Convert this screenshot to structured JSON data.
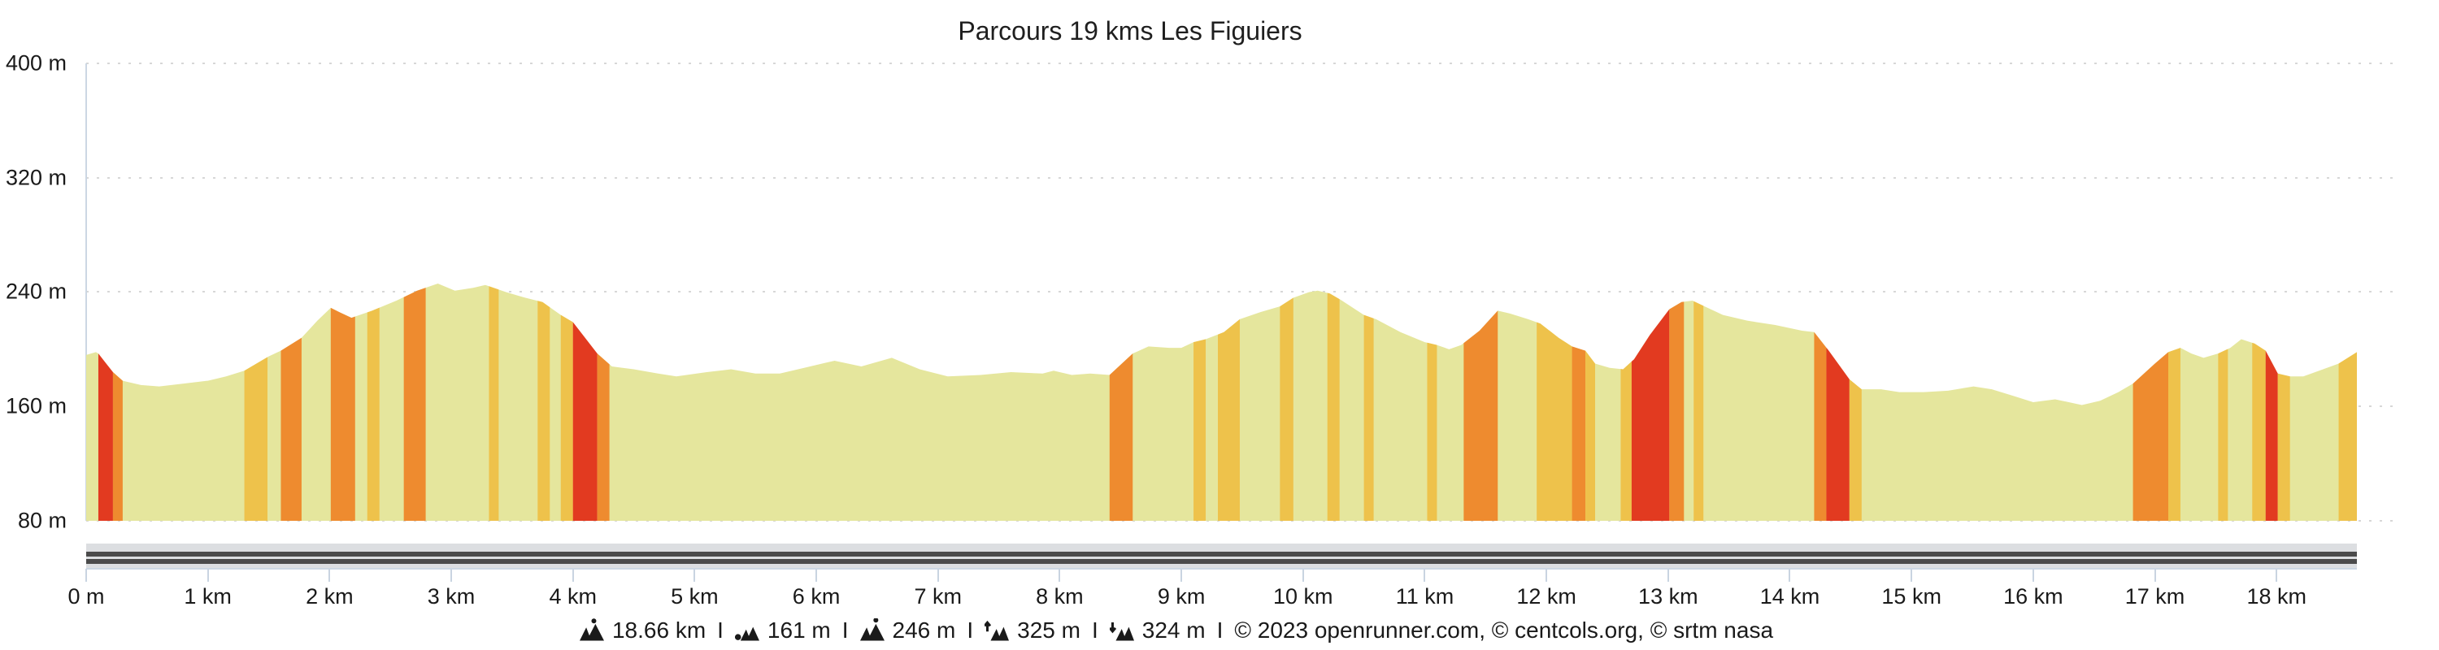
{
  "title": "Parcours 19 kms Les Figuiers",
  "y_axis": {
    "labels": [
      "400 m",
      "320 m",
      "240 m",
      "160 m",
      "80 m"
    ],
    "values": [
      400,
      320,
      240,
      160,
      80
    ]
  },
  "x_axis": {
    "labels": [
      "0 m",
      "1 km",
      "2 km",
      "3 km",
      "4 km",
      "5 km",
      "6 km",
      "7 km",
      "8 km",
      "9 km",
      "10 km",
      "11 km",
      "12 km",
      "13 km",
      "14 km",
      "15 km",
      "16 km",
      "17 km",
      "18 km"
    ]
  },
  "footer": {
    "separator": "I",
    "stats": [
      {
        "icon": "distance-icon",
        "value": "18.66 km"
      },
      {
        "icon": "min-altitude-icon",
        "value": "161 m"
      },
      {
        "icon": "max-altitude-icon",
        "value": "246 m"
      },
      {
        "icon": "ascent-icon",
        "value": "325 m"
      },
      {
        "icon": "descent-icon",
        "value": "324 m"
      }
    ],
    "copyright": "© 2023 openrunner.com, © centcols.org, © srtm nasa"
  },
  "palette": {
    "base_fill": "#e5e69d",
    "gold": "#eec24b",
    "orange": "#ee8b2f",
    "red": "#e23a20",
    "grid": "#d7d7d7",
    "axis": "#ccd7e3",
    "tick": "#c9d4e1",
    "slider_track": "#dcdee1",
    "slider_stripe": "#4b4b4b",
    "text": "#1a1a1a"
  },
  "chart_data": {
    "type": "area",
    "title": "Parcours 19 kms Les Figuiers",
    "xlabel": "distance",
    "ylabel": "elevation",
    "xlim_km": [
      0,
      19
    ],
    "ylim_m": [
      80,
      400
    ],
    "route_length_km": 18.66,
    "grid": "dotted-horizontal",
    "x_km": [
      0.0,
      0.08,
      0.1,
      0.22,
      0.3,
      0.45,
      0.6,
      0.8,
      1.0,
      1.15,
      1.3,
      1.5,
      1.6,
      1.77,
      1.9,
      2.01,
      2.08,
      2.18,
      2.35,
      2.55,
      2.72,
      2.89,
      3.03,
      3.18,
      3.28,
      3.45,
      3.61,
      3.75,
      3.9,
      4.0,
      4.2,
      4.32,
      4.5,
      4.7,
      4.85,
      5.1,
      5.3,
      5.5,
      5.7,
      5.9,
      6.15,
      6.37,
      6.62,
      6.85,
      7.08,
      7.35,
      7.6,
      7.86,
      7.95,
      8.1,
      8.25,
      8.41,
      8.6,
      8.73,
      8.9,
      9.0,
      9.1,
      9.2,
      9.35,
      9.48,
      9.65,
      9.81,
      9.92,
      10.05,
      10.12,
      10.22,
      10.32,
      10.5,
      10.6,
      10.8,
      11.0,
      11.1,
      11.2,
      11.3,
      11.45,
      11.6,
      11.7,
      11.85,
      11.95,
      12.1,
      12.21,
      12.32,
      12.4,
      12.52,
      12.63,
      12.72,
      12.85,
      13.01,
      13.11,
      13.2,
      13.3,
      13.45,
      13.65,
      13.88,
      14.1,
      14.2,
      14.32,
      14.49,
      14.59,
      14.75,
      14.9,
      15.1,
      15.3,
      15.51,
      15.66,
      15.85,
      16.0,
      16.18,
      16.4,
      16.55,
      16.7,
      16.82,
      17.0,
      17.11,
      17.21,
      17.3,
      17.4,
      17.52,
      17.62,
      17.71,
      17.82,
      17.91,
      18.01,
      18.11,
      18.22,
      18.35,
      18.51,
      18.66
    ],
    "elevation_m": [
      196,
      198,
      197,
      184,
      178,
      175,
      174,
      176,
      178,
      181,
      185,
      195,
      199,
      208,
      220,
      229,
      226,
      222,
      227,
      234,
      241,
      246,
      241,
      243,
      245,
      240,
      236,
      233,
      224,
      219,
      197,
      188,
      186,
      183,
      181,
      184,
      186,
      183,
      183,
      187,
      192,
      188,
      194,
      186,
      181,
      182,
      184,
      183,
      185,
      182,
      183,
      182,
      197,
      202,
      201,
      201,
      205,
      207,
      212,
      221,
      226,
      230,
      236,
      240,
      241,
      239,
      234,
      224,
      221,
      212,
      205,
      203,
      200,
      203,
      213,
      227,
      225,
      221,
      218,
      208,
      202,
      199,
      190,
      187,
      186,
      193,
      210,
      228,
      233,
      234,
      230,
      224,
      220,
      217,
      213,
      212,
      199,
      179,
      172,
      172,
      170,
      170,
      171,
      174,
      172,
      167,
      163,
      165,
      161,
      164,
      170,
      176,
      190,
      198,
      201,
      197,
      194,
      197,
      201,
      207,
      204,
      199,
      183,
      181,
      181,
      185,
      190,
      198
    ],
    "gradient_bands": [
      {
        "from_km": 0.1,
        "to_km": 0.22,
        "color": "red"
      },
      {
        "from_km": 0.22,
        "to_km": 0.3,
        "color": "orange"
      },
      {
        "from_km": 1.3,
        "to_km": 1.49,
        "color": "gold"
      },
      {
        "from_km": 1.6,
        "to_km": 1.77,
        "color": "orange"
      },
      {
        "from_km": 2.01,
        "to_km": 2.21,
        "color": "orange"
      },
      {
        "from_km": 2.31,
        "to_km": 2.41,
        "color": "gold"
      },
      {
        "from_km": 2.61,
        "to_km": 2.79,
        "color": "orange"
      },
      {
        "from_km": 3.31,
        "to_km": 3.39,
        "color": "gold"
      },
      {
        "from_km": 3.71,
        "to_km": 3.81,
        "color": "gold"
      },
      {
        "from_km": 3.9,
        "to_km": 4.0,
        "color": "gold"
      },
      {
        "from_km": 4.0,
        "to_km": 4.2,
        "color": "red"
      },
      {
        "from_km": 4.2,
        "to_km": 4.3,
        "color": "orange"
      },
      {
        "from_km": 8.41,
        "to_km": 8.6,
        "color": "orange"
      },
      {
        "from_km": 9.1,
        "to_km": 9.2,
        "color": "gold"
      },
      {
        "from_km": 9.3,
        "to_km": 9.48,
        "color": "gold"
      },
      {
        "from_km": 9.81,
        "to_km": 9.92,
        "color": "gold"
      },
      {
        "from_km": 10.2,
        "to_km": 10.3,
        "color": "gold"
      },
      {
        "from_km": 10.5,
        "to_km": 10.58,
        "color": "gold"
      },
      {
        "from_km": 11.02,
        "to_km": 11.1,
        "color": "gold"
      },
      {
        "from_km": 11.32,
        "to_km": 11.6,
        "color": "orange"
      },
      {
        "from_km": 11.92,
        "to_km": 12.21,
        "color": "gold"
      },
      {
        "from_km": 12.21,
        "to_km": 12.32,
        "color": "orange"
      },
      {
        "from_km": 12.32,
        "to_km": 12.4,
        "color": "gold"
      },
      {
        "from_km": 12.61,
        "to_km": 12.7,
        "color": "gold"
      },
      {
        "from_km": 12.7,
        "to_km": 13.01,
        "color": "red"
      },
      {
        "from_km": 13.01,
        "to_km": 13.13,
        "color": "orange"
      },
      {
        "from_km": 13.21,
        "to_km": 13.29,
        "color": "gold"
      },
      {
        "from_km": 14.2,
        "to_km": 14.3,
        "color": "orange"
      },
      {
        "from_km": 14.3,
        "to_km": 14.49,
        "color": "red"
      },
      {
        "from_km": 14.49,
        "to_km": 14.59,
        "color": "gold"
      },
      {
        "from_km": 16.82,
        "to_km": 17.11,
        "color": "orange"
      },
      {
        "from_km": 17.11,
        "to_km": 17.21,
        "color": "gold"
      },
      {
        "from_km": 17.52,
        "to_km": 17.6,
        "color": "gold"
      },
      {
        "from_km": 17.8,
        "to_km": 17.91,
        "color": "gold"
      },
      {
        "from_km": 17.91,
        "to_km": 18.01,
        "color": "red"
      },
      {
        "from_km": 18.01,
        "to_km": 18.11,
        "color": "gold"
      },
      {
        "from_km": 18.51,
        "to_km": 18.66,
        "color": "gold"
      }
    ]
  }
}
